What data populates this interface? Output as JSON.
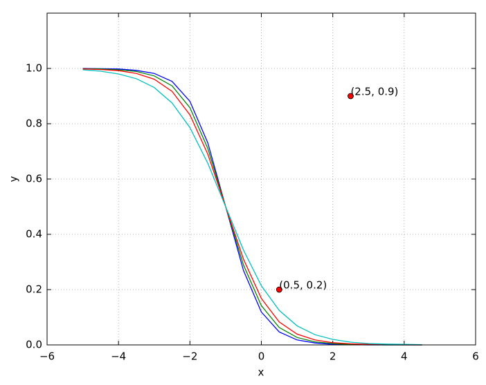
{
  "chart_data": {
    "type": "line",
    "xlabel": "x",
    "ylabel": "y",
    "x": [
      -5,
      -4.5,
      -4,
      -3.5,
      -3,
      -2.5,
      -2,
      -1.5,
      -1,
      -0.5,
      0,
      0.5,
      1,
      1.5,
      2,
      2.5,
      3,
      3.5,
      4,
      4.5
    ],
    "series": [
      {
        "color": "#0000ff",
        "values": [
          1.0,
          0.999,
          0.998,
          0.993,
          0.982,
          0.953,
          0.881,
          0.731,
          0.5,
          0.269,
          0.119,
          0.047,
          0.018,
          0.007,
          0.002,
          0.001,
          0.0,
          0.0,
          0.0,
          0.0
        ]
      },
      {
        "color": "#008000",
        "values": [
          0.999,
          0.998,
          0.995,
          0.989,
          0.973,
          0.937,
          0.858,
          0.711,
          0.5,
          0.289,
          0.142,
          0.063,
          0.027,
          0.011,
          0.005,
          0.002,
          0.001,
          0.0,
          0.0,
          0.0
        ]
      },
      {
        "color": "#ff0000",
        "values": [
          0.998,
          0.996,
          0.992,
          0.982,
          0.961,
          0.917,
          0.832,
          0.69,
          0.5,
          0.31,
          0.168,
          0.083,
          0.039,
          0.018,
          0.008,
          0.004,
          0.002,
          0.001,
          0.0,
          0.0
        ]
      },
      {
        "color": "#00bfbf",
        "values": [
          0.995,
          0.99,
          0.98,
          0.963,
          0.931,
          0.875,
          0.786,
          0.657,
          0.5,
          0.343,
          0.214,
          0.125,
          0.069,
          0.037,
          0.02,
          0.01,
          0.005,
          0.003,
          0.002,
          0.001
        ]
      }
    ],
    "annotations": [
      {
        "x": 0.5,
        "y": 0.2,
        "text": "(0.5, 0.2)",
        "color": "#ff0000"
      },
      {
        "x": 2.5,
        "y": 0.9,
        "text": "(2.5, 0.9)",
        "color": "#ff0000"
      }
    ],
    "xlim": [
      -6,
      6
    ],
    "xticks": [
      {
        "value": -6,
        "label": "−6"
      },
      {
        "value": -4,
        "label": "−4"
      },
      {
        "value": -2,
        "label": "−2"
      },
      0,
      2,
      4,
      6
    ],
    "ylim": [
      0,
      1.2
    ],
    "yticks": [
      {
        "value": 0,
        "label": "0.0"
      },
      0.2,
      0.4,
      0.6,
      0.8,
      {
        "value": 1,
        "label": "1.0"
      },
      {
        "value": 1.2,
        "label": ""
      }
    ],
    "grid": true
  }
}
